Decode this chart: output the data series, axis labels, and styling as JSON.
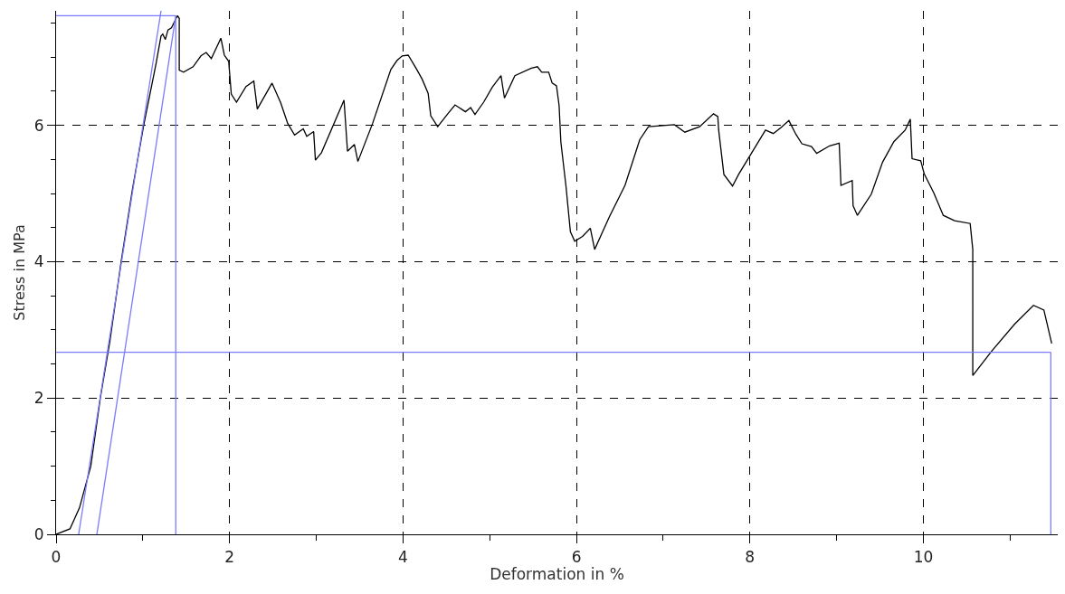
{
  "chart_data": {
    "type": "line",
    "xlabel": "Deformation in %",
    "ylabel": "Stress in MPa",
    "xlim": [
      0,
      11.55
    ],
    "ylim": [
      0,
      7.68
    ],
    "xticks": [
      0,
      {
        "value": 1,
        "label": null
      },
      2,
      {
        "value": 3,
        "label": null
      },
      4,
      {
        "value": 5,
        "label": null
      },
      6,
      {
        "value": 7,
        "label": null
      },
      8,
      {
        "value": 9,
        "label": null
      },
      10,
      {
        "value": 11,
        "label": null
      }
    ],
    "yticks": [
      0,
      {
        "value": 0.5,
        "label": null
      },
      {
        "value": 1,
        "label": null
      },
      {
        "value": 1.5,
        "label": null
      },
      2,
      {
        "value": 2.5,
        "label": null
      },
      {
        "value": 3,
        "label": null
      },
      {
        "value": 3.5,
        "label": null
      },
      4,
      {
        "value": 4.5,
        "label": null
      },
      {
        "value": 5,
        "label": null
      },
      {
        "value": 5.5,
        "label": null
      },
      6,
      {
        "value": 6.5,
        "label": null
      },
      {
        "value": 7,
        "label": null
      },
      {
        "value": 7.5,
        "label": null
      }
    ],
    "grid": true,
    "line_style": "solid",
    "marker": "none",
    "series": [
      {
        "color": "#000000",
        "x": [
          0,
          0.16,
          0.27,
          0.4,
          0.51,
          0.62,
          0.75,
          0.88,
          1.01,
          1.15,
          1.21,
          1.23,
          1.26,
          1.29,
          1.33,
          1.4,
          1.42,
          1.42,
          1.47,
          1.58,
          1.67,
          1.73,
          1.79,
          1.9,
          1.94,
          1.99,
          2.02,
          2.08,
          2.19,
          2.28,
          2.32,
          2.49,
          2.59,
          2.67,
          2.75,
          2.85,
          2.89,
          2.97,
          2.99,
          3.06,
          3.32,
          3.36,
          3.44,
          3.48,
          3.65,
          3.86,
          3.93,
          3.99,
          4.06,
          4.15,
          4.22,
          4.29,
          4.32,
          4.4,
          4.51,
          4.6,
          4.72,
          4.78,
          4.83,
          4.93,
          5.03,
          5.13,
          5.17,
          5.29,
          5.48,
          5.55,
          5.6,
          5.68,
          5.72,
          5.77,
          5.8,
          5.82,
          5.88,
          5.93,
          5.98,
          6.07,
          6.16,
          6.21,
          6.38,
          6.56,
          6.73,
          6.83,
          7.13,
          7.25,
          7.42,
          7.58,
          7.63,
          7.64,
          7.7,
          7.8,
          7.87,
          8.18,
          8.27,
          8.36,
          8.45,
          8.53,
          8.6,
          8.71,
          8.77,
          8.92,
          9.03,
          9.05,
          9.18,
          9.19,
          9.24,
          9.4,
          9.53,
          9.66,
          9.79,
          9.85,
          9.87,
          9.97,
          10.01,
          10.12,
          10.23,
          10.36,
          10.54,
          10.57,
          10.57,
          10.79,
          11.05,
          11.27,
          11.39,
          11.48
        ],
        "values": [
          0,
          0.08,
          0.39,
          1.0,
          2.0,
          2.83,
          4.0,
          5.06,
          6.0,
          6.89,
          7.31,
          7.34,
          7.26,
          7.4,
          7.43,
          7.61,
          7.57,
          6.81,
          6.78,
          6.86,
          7.02,
          7.07,
          6.98,
          7.28,
          7.03,
          6.94,
          6.46,
          6.34,
          6.57,
          6.65,
          6.24,
          6.62,
          6.33,
          6.03,
          5.86,
          5.95,
          5.84,
          5.91,
          5.49,
          5.6,
          6.37,
          5.62,
          5.72,
          5.47,
          6.03,
          6.82,
          6.95,
          7.02,
          7.03,
          6.84,
          6.68,
          6.47,
          6.14,
          5.98,
          6.16,
          6.3,
          6.2,
          6.26,
          6.16,
          6.34,
          6.56,
          6.73,
          6.4,
          6.73,
          6.84,
          6.86,
          6.78,
          6.78,
          6.62,
          6.58,
          6.29,
          5.76,
          5.1,
          4.44,
          4.3,
          4.37,
          4.49,
          4.18,
          4.66,
          5.12,
          5.79,
          5.98,
          6.01,
          5.9,
          5.98,
          6.17,
          6.13,
          5.93,
          5.28,
          5.11,
          5.28,
          5.93,
          5.88,
          5.97,
          6.07,
          5.87,
          5.73,
          5.69,
          5.59,
          5.7,
          5.74,
          5.12,
          5.19,
          4.82,
          4.68,
          4.99,
          5.46,
          5.76,
          5.93,
          6.09,
          5.51,
          5.48,
          5.29,
          5.01,
          4.68,
          4.6,
          4.56,
          4.18,
          2.33,
          2.69,
          3.08,
          3.36,
          3.29,
          2.8
        ]
      },
      {
        "color": "#7b7bff",
        "x": [
          0,
          1.38
        ],
        "values": [
          7.61,
          7.61
        ]
      },
      {
        "color": "#7b7bff",
        "x": [
          1.38,
          1.38
        ],
        "values": [
          0,
          7.61
        ]
      },
      {
        "color": "#7b7bff",
        "x": [
          0,
          11.47
        ],
        "values": [
          2.67,
          2.67
        ]
      },
      {
        "color": "#7b7bff",
        "x": [
          11.47,
          11.47
        ],
        "values": [
          0,
          2.67
        ]
      },
      {
        "color": "#7b7bff",
        "x": [
          0.26,
          1.21
        ],
        "values": [
          0,
          7.68
        ]
      },
      {
        "color": "#7b7bff",
        "x": [
          0.47,
          1.38
        ],
        "values": [
          0,
          7.61
        ]
      }
    ]
  }
}
